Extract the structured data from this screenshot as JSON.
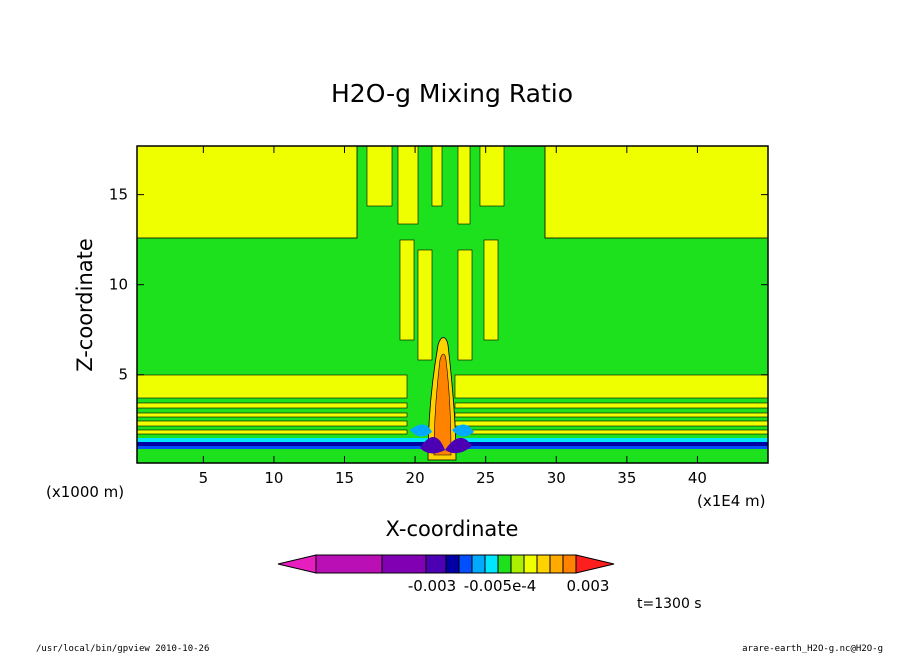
{
  "chart_data": {
    "type": "heatmap",
    "title": "H2O-g Mixing Ratio",
    "xlabel": "X-coordinate",
    "ylabel": "Z-coordinate",
    "x_unit": "(x1E4 m)",
    "y_unit": "(x1000 m)",
    "xlim": [
      0.3,
      45
    ],
    "ylim": [
      0.1,
      17.7
    ],
    "x_ticks": [
      5,
      10,
      15,
      20,
      25,
      30,
      35,
      40
    ],
    "y_ticks": [
      5,
      10,
      15
    ],
    "time_label": "t=1300 s",
    "colorbar": {
      "colors": [
        "#e61ebe",
        "#b90fb4",
        "#8200b4",
        "#4b00b4",
        "#0000a5",
        "#0050ff",
        "#00aaff",
        "#00e6ff",
        "#1ee11e",
        "#aaf000",
        "#f0ff00",
        "#ffd200",
        "#ffaa00",
        "#ff8200",
        "#ff1e1e"
      ],
      "labels": [
        "-0.003",
        "-0.005e-4",
        "0.003"
      ]
    },
    "fields": {
      "background": "#1ee11e",
      "layers": [
        {
          "name": "upper yellow left",
          "color": "#f0ff00"
        },
        {
          "name": "upper yellow right",
          "color": "#f0ff00"
        },
        {
          "name": "lower stratified bands",
          "color": "#f0ff00"
        },
        {
          "name": "central plume",
          "color": "#ff8200"
        }
      ]
    }
  },
  "footer": {
    "left": "/usr/local/bin/gpview  2010-10-26",
    "right": "arare-earth_H2O-g.nc@H2O-g"
  }
}
